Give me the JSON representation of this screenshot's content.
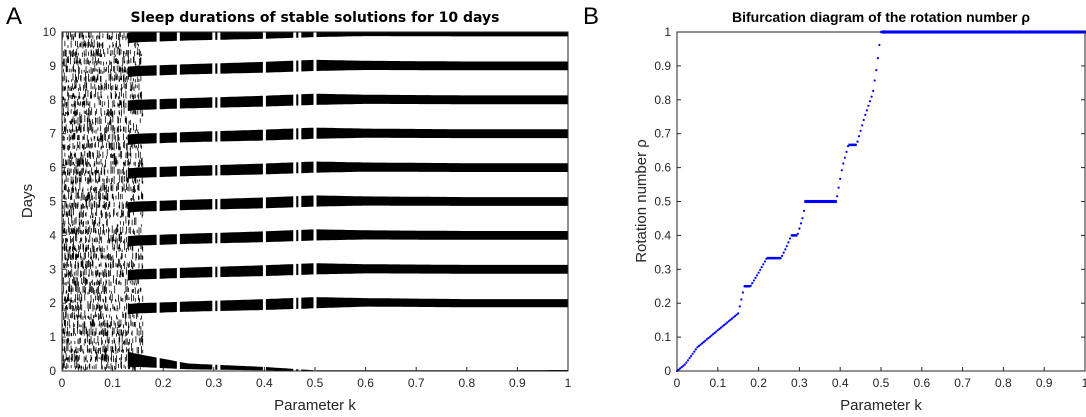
{
  "panels": {
    "a_letter": "A",
    "b_letter": "B"
  },
  "chart_data": [
    {
      "id": "A",
      "type": "heatmap",
      "title": "Sleep durations of stable solutions for 10 days",
      "xlabel": "Parameter k",
      "ylabel": "Days",
      "xlim": [
        0,
        1
      ],
      "ylim": [
        0,
        10
      ],
      "x_ticks": [
        "0",
        "0.1",
        "0.2",
        "0.3",
        "0.4",
        "0.5",
        "0.6",
        "0.7",
        "0.8",
        "0.9",
        "1"
      ],
      "y_ticks": [
        "0",
        "1",
        "2",
        "3",
        "4",
        "5",
        "6",
        "7",
        "8",
        "9",
        "10"
      ],
      "grid": false,
      "colors": {
        "sleep": "#000000",
        "wake": "#ffffff"
      },
      "sleep_bands": [
        {
          "day": 0,
          "k": [
            0,
            0.05,
            0.15,
            0.25,
            0.4,
            0.5,
            0.6,
            0.8,
            1.0
          ],
          "start": [
            0.0,
            0.05,
            0.12,
            0.05,
            0.02,
            0.0,
            0.0,
            0.0,
            0.0
          ],
          "end": [
            1.0,
            0.85,
            0.5,
            0.22,
            0.12,
            0.02,
            0.02,
            0.02,
            0.03
          ]
        },
        {
          "day": 1,
          "k": [
            0,
            0.05,
            0.15,
            0.25,
            0.4,
            0.5,
            0.6,
            0.8,
            1.0
          ],
          "start": [
            0.0,
            0.55,
            0.7,
            0.75,
            0.8,
            0.85,
            0.9,
            0.88,
            0.88
          ],
          "end": [
            1.0,
            0.9,
            1.0,
            1.05,
            1.12,
            1.18,
            1.15,
            1.12,
            1.12
          ]
        },
        {
          "day": 2,
          "k": [
            0,
            0.05,
            0.15,
            0.25,
            0.4,
            0.5,
            0.6,
            0.8,
            1.0
          ],
          "start": [
            0.0,
            0.55,
            0.7,
            0.75,
            0.8,
            0.85,
            0.88,
            0.87,
            0.87
          ],
          "end": [
            1.0,
            0.9,
            1.0,
            1.05,
            1.12,
            1.18,
            1.15,
            1.13,
            1.13
          ]
        },
        {
          "day": 3,
          "k": [
            0,
            0.05,
            0.15,
            0.25,
            0.4,
            0.5,
            0.6,
            0.8,
            1.0
          ],
          "start": [
            0.0,
            0.55,
            0.7,
            0.75,
            0.8,
            0.85,
            0.88,
            0.87,
            0.87
          ],
          "end": [
            1.0,
            0.9,
            1.0,
            1.05,
            1.12,
            1.18,
            1.15,
            1.13,
            1.13
          ]
        },
        {
          "day": 4,
          "k": [
            0,
            0.05,
            0.15,
            0.25,
            0.4,
            0.5,
            0.6,
            0.8,
            1.0
          ],
          "start": [
            0.0,
            0.55,
            0.7,
            0.75,
            0.8,
            0.85,
            0.88,
            0.87,
            0.87
          ],
          "end": [
            1.0,
            0.9,
            1.0,
            1.05,
            1.12,
            1.18,
            1.15,
            1.13,
            1.13
          ]
        },
        {
          "day": 5,
          "k": [
            0,
            0.05,
            0.15,
            0.25,
            0.4,
            0.5,
            0.6,
            0.8,
            1.0
          ],
          "start": [
            0.0,
            0.55,
            0.7,
            0.75,
            0.8,
            0.85,
            0.88,
            0.87,
            0.87
          ],
          "end": [
            1.0,
            0.9,
            1.0,
            1.05,
            1.12,
            1.18,
            1.15,
            1.13,
            1.13
          ]
        },
        {
          "day": 6,
          "k": [
            0,
            0.05,
            0.15,
            0.25,
            0.4,
            0.5,
            0.6,
            0.8,
            1.0
          ],
          "start": [
            0.0,
            0.55,
            0.7,
            0.75,
            0.8,
            0.85,
            0.88,
            0.87,
            0.87
          ],
          "end": [
            1.0,
            0.9,
            1.0,
            1.05,
            1.12,
            1.18,
            1.15,
            1.13,
            1.13
          ]
        },
        {
          "day": 7,
          "k": [
            0,
            0.05,
            0.15,
            0.25,
            0.4,
            0.5,
            0.6,
            0.8,
            1.0
          ],
          "start": [
            0.0,
            0.55,
            0.7,
            0.75,
            0.8,
            0.85,
            0.88,
            0.87,
            0.87
          ],
          "end": [
            1.0,
            0.9,
            1.0,
            1.05,
            1.12,
            1.18,
            1.15,
            1.13,
            1.13
          ]
        },
        {
          "day": 8,
          "k": [
            0,
            0.05,
            0.15,
            0.25,
            0.4,
            0.5,
            0.6,
            0.8,
            1.0
          ],
          "start": [
            0.0,
            0.55,
            0.7,
            0.75,
            0.8,
            0.85,
            0.88,
            0.87,
            0.87
          ],
          "end": [
            1.0,
            0.9,
            1.0,
            1.05,
            1.12,
            1.18,
            1.15,
            1.13,
            1.13
          ]
        },
        {
          "day": 9,
          "k": [
            0,
            0.05,
            0.15,
            0.25,
            0.4,
            0.5,
            0.6,
            0.8,
            1.0
          ],
          "start": [
            0.0,
            0.55,
            0.7,
            0.75,
            0.8,
            0.85,
            0.88,
            0.87,
            0.87
          ],
          "end": [
            1.0,
            0.9,
            1.0,
            1.05,
            1.12,
            1.18,
            1.15,
            1.13,
            1.13
          ]
        }
      ],
      "gaps_k": [
        0.19,
        0.23,
        0.3,
        0.31,
        0.4,
        0.46,
        0.47,
        0.5
      ]
    },
    {
      "id": "B",
      "type": "scatter",
      "title": "Bifurcation diagram of the rotation number ρ",
      "xlabel": "Parameter k",
      "ylabel": "Rotation number ρ",
      "xlim": [
        0,
        1
      ],
      "ylim": [
        0,
        1
      ],
      "x_ticks": [
        "0",
        "0.1",
        "0.2",
        "0.3",
        "0.4",
        "0.5",
        "0.6",
        "0.7",
        "0.8",
        "0.9",
        "1"
      ],
      "y_ticks": [
        "0",
        "0.1",
        "0.2",
        "0.3",
        "0.4",
        "0.5",
        "0.6",
        "0.7",
        "0.8",
        "0.9",
        "1"
      ],
      "grid": false,
      "color": "#0000ff",
      "curve": [
        {
          "k": 0.0,
          "rho": 0.0
        },
        {
          "k": 0.02,
          "rho": 0.02
        },
        {
          "k": 0.05,
          "rho": 0.07
        },
        {
          "k": 0.1,
          "rho": 0.12
        },
        {
          "k": 0.15,
          "rho": 0.17
        },
        {
          "k": 0.165,
          "rho": 0.25
        },
        {
          "k": 0.18,
          "rho": 0.25
        },
        {
          "k": 0.2,
          "rho": 0.29
        },
        {
          "k": 0.22,
          "rho": 0.333
        },
        {
          "k": 0.255,
          "rho": 0.333
        },
        {
          "k": 0.27,
          "rho": 0.37
        },
        {
          "k": 0.28,
          "rho": 0.4
        },
        {
          "k": 0.295,
          "rho": 0.4
        },
        {
          "k": 0.31,
          "rho": 0.46
        },
        {
          "k": 0.315,
          "rho": 0.5
        },
        {
          "k": 0.39,
          "rho": 0.5
        },
        {
          "k": 0.405,
          "rho": 0.6
        },
        {
          "k": 0.42,
          "rho": 0.667
        },
        {
          "k": 0.44,
          "rho": 0.667
        },
        {
          "k": 0.46,
          "rho": 0.75
        },
        {
          "k": 0.48,
          "rho": 0.82
        },
        {
          "k": 0.49,
          "rho": 0.9
        },
        {
          "k": 0.5,
          "rho": 1.0
        },
        {
          "k": 1.0,
          "rho": 1.0
        }
      ]
    }
  ]
}
